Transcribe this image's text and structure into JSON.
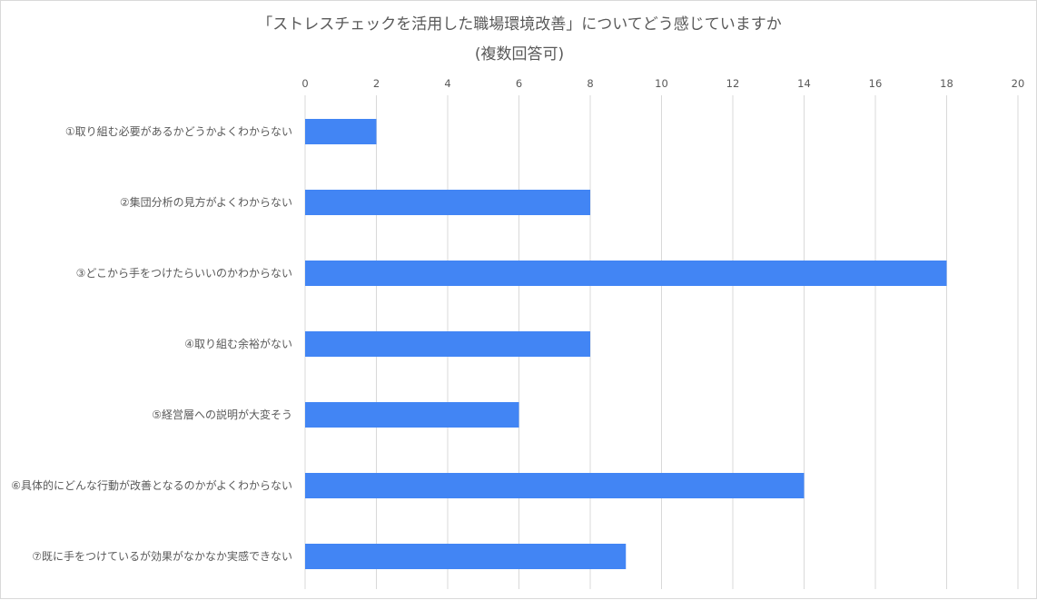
{
  "chart_data": {
    "type": "bar",
    "orientation": "horizontal",
    "title_lines": [
      "「ストレスチェックを活用した職場環境改善」についてどう感じていますか",
      "(複数回答可)"
    ],
    "categories": [
      "①取り組む必要があるかどうかよくわからない",
      "②集団分析の見方がよくわからない",
      "③どこから手をつけたらいいのかわからない",
      "④取り組む余裕がない",
      "⑤経営層への説明が大変そう",
      "⑥具体的にどんな行動が改善となるのかがよくわからない",
      "⑦既に手をつけているが効果がなかなか実感できない"
    ],
    "values": [
      2,
      8,
      18,
      8,
      6,
      14,
      9
    ],
    "xlim": [
      0,
      20
    ],
    "xticks": [
      "0",
      "2",
      "4",
      "6",
      "8",
      "10",
      "12",
      "14",
      "16",
      "18",
      "20"
    ],
    "axis_position": "top",
    "grid": true,
    "legend": "none",
    "bar_color": "#4285f4",
    "grid_color": "#d9d9d9",
    "text_color": "#595959"
  }
}
